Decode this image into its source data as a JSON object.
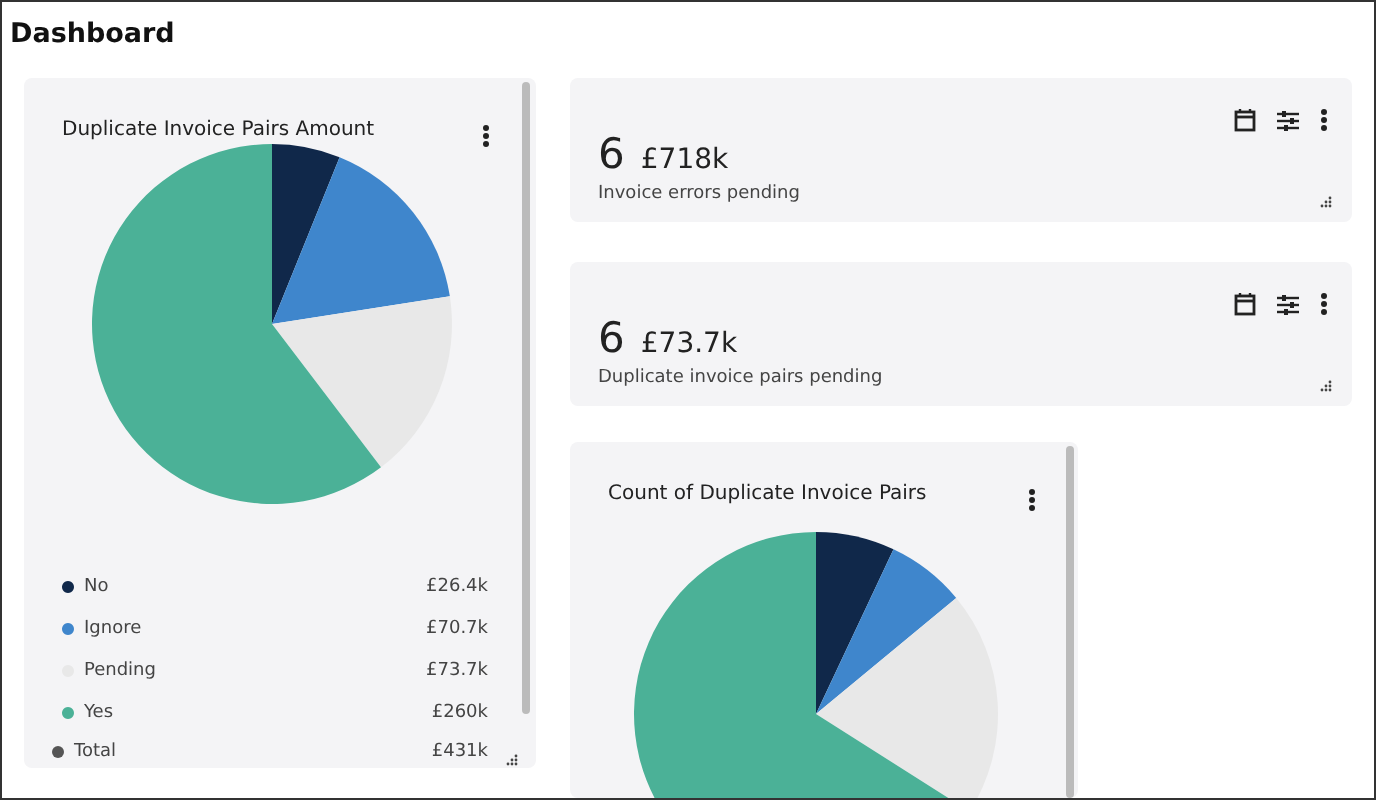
{
  "chart_data": [
    {
      "type": "other",
      "title": "Dashboard"
    },
    {
      "type": "pie",
      "title": "Duplicate Invoice Pairs Amount",
      "categories": [
        "No",
        "Ignore",
        "Pending",
        "Yes"
      ],
      "values": [
        26.4,
        70.7,
        73.7,
        260
      ],
      "colors": [
        "#10284a",
        "#3f86cc",
        "#e8e8e8",
        "#4bb197"
      ],
      "value_labels": [
        "£26.4k",
        "£70.7k",
        "£73.7k",
        "£260k"
      ],
      "legend": "bottom",
      "annotations": [
        "Total",
        "£431k"
      ]
    },
    {
      "type": "other",
      "annotations": [
        "6",
        "£718k",
        "Invoice errors pending"
      ]
    },
    {
      "type": "other",
      "annotations": [
        "6",
        "£73.7k",
        "Duplicate invoice pairs pending"
      ]
    },
    {
      "type": "pie",
      "title": "Count of Duplicate Invoice Pairs",
      "categories": [
        null,
        null,
        null,
        null
      ],
      "values": [
        7,
        7,
        20,
        66
      ],
      "colors": [
        "#10284a",
        "#3f86cc",
        "#e8e8e8",
        "#4bb197"
      ]
    }
  ]
}
